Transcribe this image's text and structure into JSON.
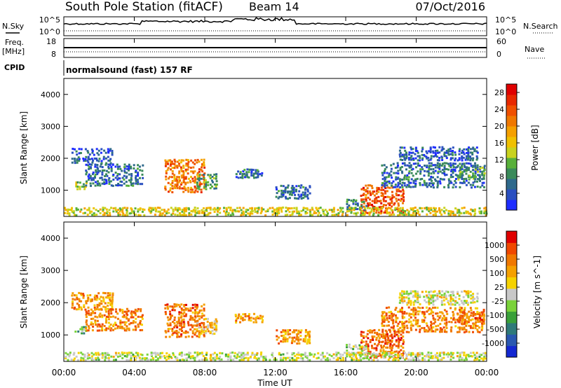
{
  "header": {
    "title": "South Pole Station (fitACF)",
    "beam": "Beam 14",
    "date": "07/Oct/2016"
  },
  "top_panels": {
    "nsky_label": "N.Sky",
    "nsky_ticks": [
      "10^5",
      "10^0"
    ],
    "nsearch_label": "N.Search",
    "nsearch_ticks": [
      "10^5",
      "10^0"
    ],
    "freq_label": "Freq.",
    "freq_unit": "[MHz]",
    "freq_ticks": [
      "18",
      "8"
    ],
    "nave_label": "Nave",
    "nave_ticks": [
      "60",
      "0"
    ],
    "cpid_label": "CPID",
    "cpid_text": "normalsound (fast) 157 RF"
  },
  "axes": {
    "xlabel": "Time UT",
    "xticks": [
      "00:00",
      "04:00",
      "08:00",
      "12:00",
      "16:00",
      "20:00",
      "00:00"
    ],
    "ylabel": "Slant Range [km]",
    "yticks": [
      "1000",
      "2000",
      "3000",
      "4000"
    ]
  },
  "chart_data": [
    {
      "type": "heatmap",
      "name": "power",
      "x_range_hours": [
        0,
        24
      ],
      "y_range_km": [
        180,
        4500
      ],
      "ylabel": "Slant Range [km]",
      "xlabel": "Time UT",
      "colorbar": {
        "label": "Power [dB]",
        "ticks": [
          "4",
          "8",
          "12",
          "16",
          "20",
          "24",
          "28"
        ],
        "colors": [
          "#1e2dff",
          "#2a4fc0",
          "#2f6a8c",
          "#3a8a5a",
          "#58b03a",
          "#c8d21e",
          "#f0c000",
          "#f5a000",
          "#f07800",
          "#f05000",
          "#e82800",
          "#e00000"
        ],
        "range": [
          0,
          30
        ]
      },
      "regions": [
        {
          "t0": 0.4,
          "t1": 2.8,
          "r0": 1750,
          "r1": 2300,
          "level": 0.15
        },
        {
          "t0": 0.6,
          "t1": 1.3,
          "r0": 1000,
          "r1": 1250,
          "level": 0.45
        },
        {
          "t0": 1.2,
          "t1": 4.5,
          "r0": 1100,
          "r1": 1800,
          "level": 0.2
        },
        {
          "t0": 5.7,
          "t1": 8.0,
          "r0": 900,
          "r1": 1950,
          "level": 0.7
        },
        {
          "t0": 7.5,
          "t1": 8.7,
          "r0": 1000,
          "r1": 1500,
          "level": 0.3
        },
        {
          "t0": 9.7,
          "t1": 11.3,
          "r0": 1350,
          "r1": 1650,
          "level": 0.2
        },
        {
          "t0": 12.0,
          "t1": 14.0,
          "r0": 700,
          "r1": 1150,
          "level": 0.2
        },
        {
          "t0": 16.8,
          "t1": 19.3,
          "r0": 250,
          "r1": 1150,
          "level": 0.8
        },
        {
          "t0": 16.0,
          "t1": 17.2,
          "r0": 350,
          "r1": 700,
          "level": 0.25
        },
        {
          "t0": 18.0,
          "t1": 23.9,
          "r0": 1050,
          "r1": 1850,
          "level": 0.2
        },
        {
          "t0": 19.0,
          "t1": 23.5,
          "r0": 1900,
          "r1": 2350,
          "level": 0.15
        },
        {
          "t0": 22.3,
          "t1": 23.9,
          "r0": 1300,
          "r1": 1700,
          "level": 0.35
        },
        {
          "t0": 0.0,
          "t1": 24.0,
          "r0": 180,
          "r1": 450,
          "level": 0.5
        }
      ]
    },
    {
      "type": "heatmap",
      "name": "velocity",
      "x_range_hours": [
        0,
        24
      ],
      "y_range_km": [
        180,
        4500
      ],
      "ylabel": "Slant Range [km]",
      "xlabel": "Time UT",
      "colorbar": {
        "label": "Velocity [m s^-1]",
        "ticks": [
          "1000",
          "500",
          "100",
          "25",
          "-25",
          "-100",
          "-500",
          "-1000"
        ],
        "colors": [
          "#1428d2",
          "#2a58b0",
          "#2f7a7a",
          "#3aa03a",
          "#7ad23a",
          "#c8c8c8",
          "#f5d200",
          "#f5a000",
          "#f07800",
          "#f04800",
          "#e00000"
        ],
        "range": [
          -1200,
          1200
        ]
      },
      "regions": [
        {
          "t0": 0.4,
          "t1": 2.8,
          "r0": 1750,
          "r1": 2300,
          "level": 0.7
        },
        {
          "t0": 0.6,
          "t1": 1.3,
          "r0": 1000,
          "r1": 1250,
          "level": 0.35
        },
        {
          "t0": 1.2,
          "t1": 4.5,
          "r0": 1100,
          "r1": 1800,
          "level": 0.75
        },
        {
          "t0": 5.7,
          "t1": 8.0,
          "r0": 900,
          "r1": 1950,
          "level": 0.78
        },
        {
          "t0": 7.5,
          "t1": 8.7,
          "r0": 1000,
          "r1": 1500,
          "level": 0.6
        },
        {
          "t0": 9.7,
          "t1": 11.3,
          "r0": 1350,
          "r1": 1650,
          "level": 0.7
        },
        {
          "t0": 12.0,
          "t1": 14.0,
          "r0": 700,
          "r1": 1150,
          "level": 0.72
        },
        {
          "t0": 16.8,
          "t1": 19.3,
          "r0": 250,
          "r1": 1150,
          "level": 0.8
        },
        {
          "t0": 16.0,
          "t1": 17.2,
          "r0": 350,
          "r1": 700,
          "level": 0.45
        },
        {
          "t0": 18.0,
          "t1": 23.9,
          "r0": 1050,
          "r1": 1850,
          "level": 0.75
        },
        {
          "t0": 19.0,
          "t1": 23.5,
          "r0": 1900,
          "r1": 2350,
          "level": 0.52
        },
        {
          "t0": 22.3,
          "t1": 23.9,
          "r0": 1300,
          "r1": 1700,
          "level": 0.78
        },
        {
          "t0": 0.0,
          "t1": 24.0,
          "r0": 180,
          "r1": 450,
          "level": 0.5
        }
      ]
    }
  ]
}
